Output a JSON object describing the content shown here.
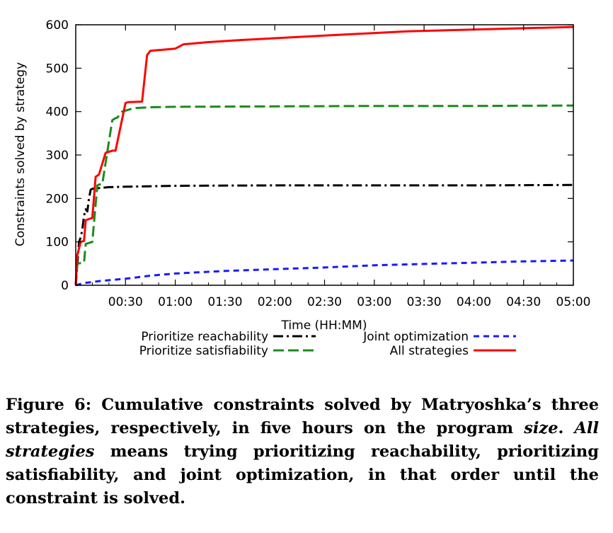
{
  "chart_data": {
    "type": "line",
    "xlabel": "Time (HH:MM)",
    "ylabel": "Constraints solved by strategy",
    "xlim_minutes": [
      0,
      300
    ],
    "ylim": [
      0,
      600
    ],
    "x_ticks": [
      {
        "minutes": 30,
        "label": "00:30"
      },
      {
        "minutes": 60,
        "label": "01:00"
      },
      {
        "minutes": 90,
        "label": "01:30"
      },
      {
        "minutes": 120,
        "label": "02:00"
      },
      {
        "minutes": 150,
        "label": "02:30"
      },
      {
        "minutes": 180,
        "label": "03:00"
      },
      {
        "minutes": 210,
        "label": "03:30"
      },
      {
        "minutes": 240,
        "label": "04:00"
      },
      {
        "minutes": 270,
        "label": "04:30"
      },
      {
        "minutes": 300,
        "label": "05:00"
      }
    ],
    "y_ticks": [
      0,
      100,
      200,
      300,
      400,
      500,
      600
    ],
    "grid": false,
    "legend_position": "below plot",
    "series": [
      {
        "name": "Prioritize reachability",
        "color": "#000000",
        "dash": "dash-dot",
        "x_minutes": [
          0,
          1,
          2,
          3,
          4,
          5,
          6,
          7,
          8,
          9,
          10,
          12,
          15,
          20,
          30,
          60,
          120,
          180,
          240,
          300
        ],
        "y": [
          0,
          50,
          100,
          110,
          130,
          160,
          175,
          170,
          200,
          220,
          222,
          223,
          224,
          226,
          227,
          229,
          230,
          230,
          230,
          231
        ]
      },
      {
        "name": "Prioritize satisfiability",
        "color": "#1a8c1a",
        "dash": "long-dash",
        "x_minutes": [
          0,
          1,
          5,
          6,
          10,
          13,
          14,
          16,
          22,
          24,
          25,
          28,
          35,
          45,
          60,
          120,
          180,
          240,
          300
        ],
        "y": [
          0,
          50,
          52,
          95,
          100,
          230,
          232,
          233,
          380,
          385,
          386,
          400,
          408,
          410,
          411,
          412,
          413,
          413,
          414
        ]
      },
      {
        "name": "Joint optimization",
        "color": "#1a1aff",
        "dash": "short-dash",
        "x_minutes": [
          0,
          5,
          15,
          30,
          45,
          60,
          90,
          120,
          150,
          180,
          210,
          240,
          270,
          300
        ],
        "y": [
          0,
          5,
          10,
          15,
          22,
          27,
          33,
          37,
          41,
          46,
          49,
          52,
          55,
          57
        ]
      },
      {
        "name": "All strategies",
        "color": "#ff0000",
        "dash": "solid",
        "x_minutes": [
          0,
          1,
          3,
          5,
          6,
          10,
          12,
          14,
          18,
          22,
          24,
          30,
          32,
          40,
          43,
          45,
          60,
          65,
          80,
          100,
          150,
          200,
          250,
          300
        ],
        "y": [
          0,
          70,
          100,
          102,
          150,
          155,
          250,
          255,
          305,
          310,
          310,
          420,
          422,
          423,
          530,
          540,
          545,
          555,
          560,
          565,
          575,
          585,
          590,
          595
        ]
      }
    ]
  },
  "caption": {
    "label": "Figure 6:",
    "text_1": " Cumulative constraints solved by Matryoshka’s three strategies, respectively, in five hours on the program ",
    "program": "size",
    "text_2": ". ",
    "all_strategies": "All strategies",
    "text_3": " means trying prioritizing reachability, prioritizing satisfiability, and joint optimization, in that order until the constraint is solved."
  }
}
